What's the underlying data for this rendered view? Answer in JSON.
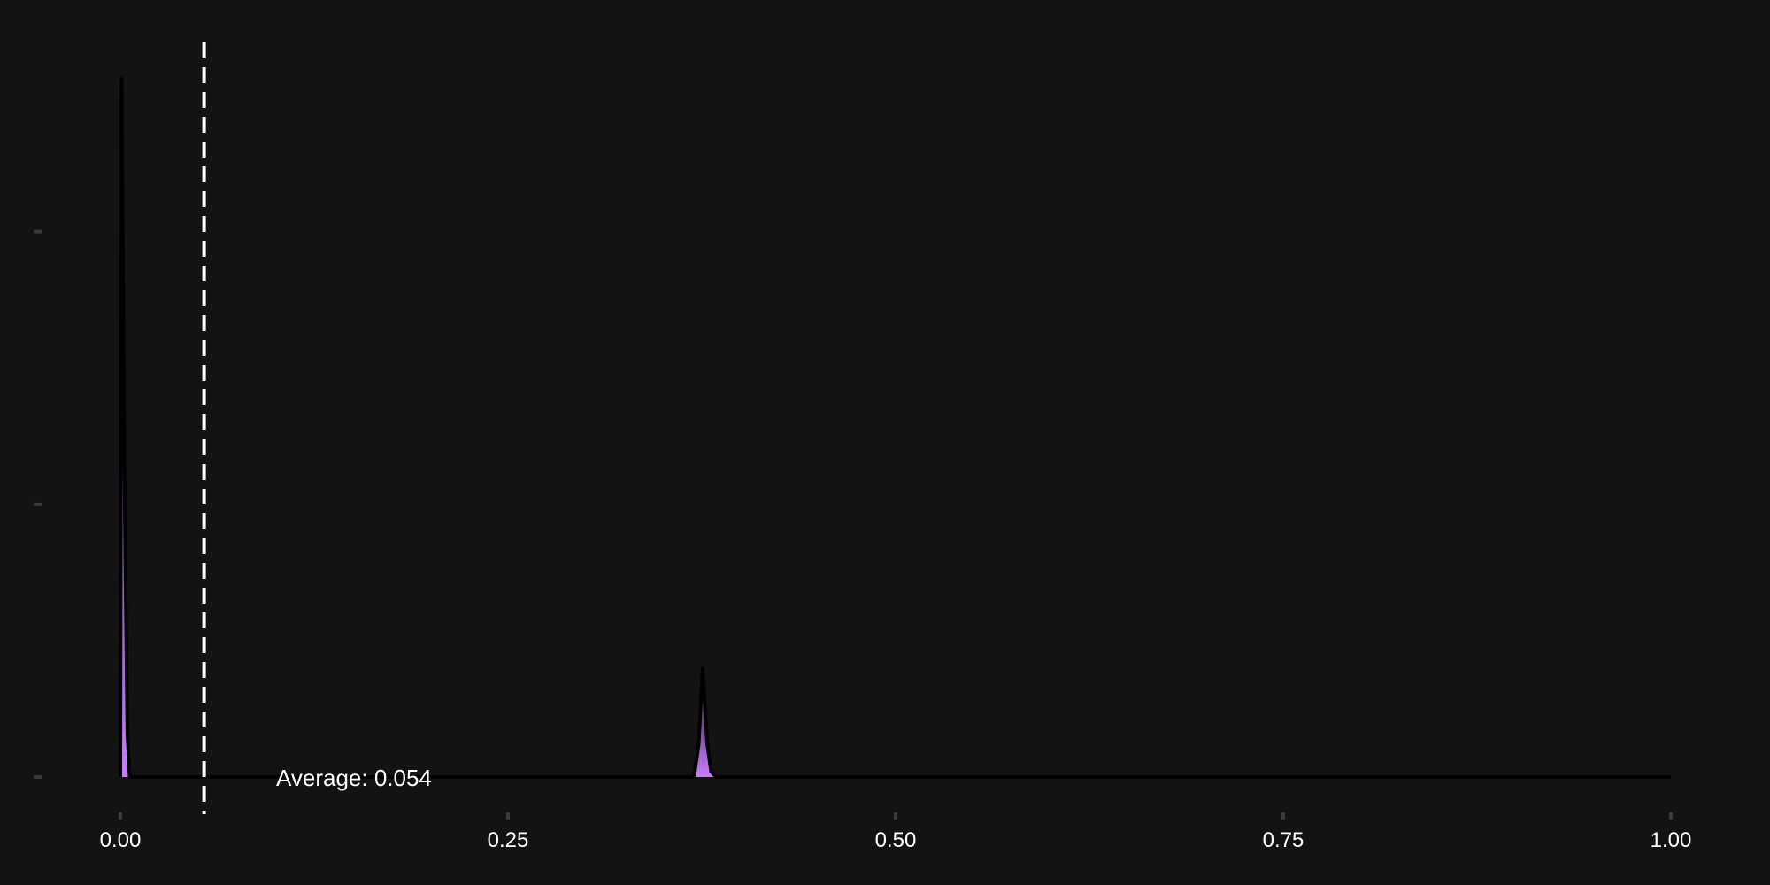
{
  "chart_data": {
    "type": "area",
    "title": "",
    "xlabel": "",
    "ylabel": "",
    "xlim": [
      0,
      1
    ],
    "ylim": [
      0,
      1.3
    ],
    "x_ticks": [
      0,
      0.25,
      0.5,
      0.75,
      1
    ],
    "x_tick_labels": [
      "0.00",
      "0.25",
      "0.50",
      "0.75",
      "1.00"
    ],
    "y_ticks": [
      0,
      0.5,
      1.0
    ],
    "y_tick_labels": [
      "",
      "",
      ""
    ],
    "grid": false,
    "legend": "none",
    "series": [
      {
        "x": [
          0,
          0.0008,
          0.0015,
          0.003,
          0.0045,
          0.006,
          0.37,
          0.373,
          0.3755,
          0.3785,
          0.381,
          0.384,
          1.0
        ],
        "y": [
          0,
          1.28,
          1.0,
          0.45,
          0.08,
          0,
          0,
          0.06,
          0.2,
          0.06,
          0.01,
          0,
          0
        ]
      }
    ],
    "average_line": {
      "x": 0.054,
      "label": "Average: 0.054"
    },
    "colors": {
      "background": "#131313",
      "curve": "#000000",
      "fill": "#c77dff",
      "average_line": "#ffffff",
      "text": "#ffffff",
      "axis_ticks": "#3a3a3a"
    }
  }
}
